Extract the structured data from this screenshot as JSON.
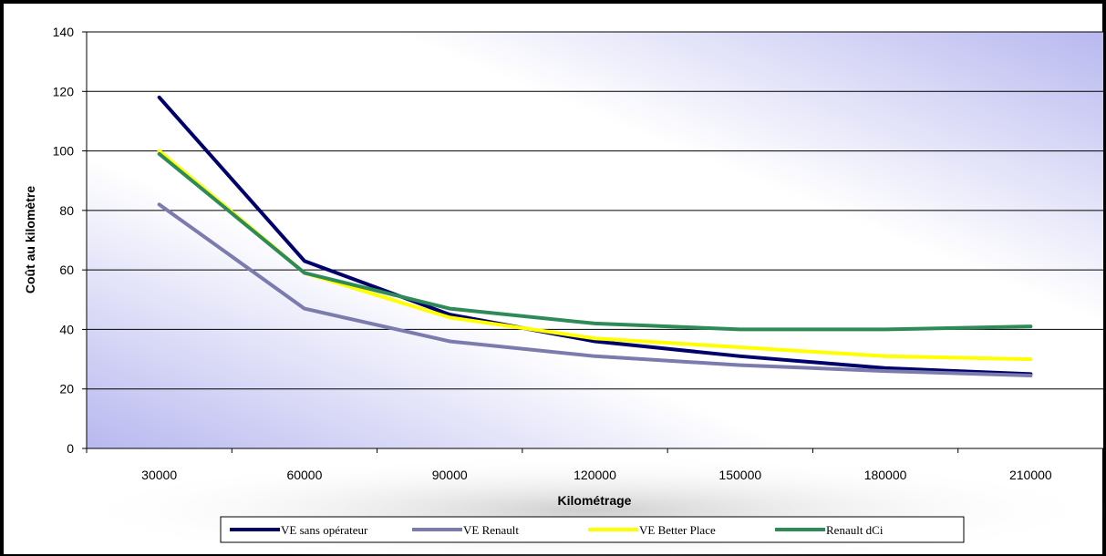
{
  "chart_data": {
    "type": "line",
    "xlabel": "Kilométrage",
    "ylabel": "Coût au kilomètre",
    "categories": [
      "30000",
      "60000",
      "90000",
      "120000",
      "150000",
      "180000",
      "210000"
    ],
    "ylim": [
      0,
      140
    ],
    "yticks": [
      0,
      20,
      40,
      60,
      80,
      100,
      120,
      140
    ],
    "grid": true,
    "legend_position": "bottom",
    "series": [
      {
        "name": "VE sans opérateur",
        "color": "#00006b",
        "values": [
          118,
          63,
          45,
          36,
          31,
          27,
          25
        ]
      },
      {
        "name": "VE Renault",
        "color": "#7b7bad",
        "values": [
          82,
          47,
          36,
          31,
          28,
          26,
          24.5
        ]
      },
      {
        "name": "VE Better Place",
        "color": "#ffff00",
        "values": [
          100,
          59,
          44,
          37,
          34,
          31,
          30
        ]
      },
      {
        "name": "Renault dCi",
        "color": "#2e8b57",
        "values": [
          99,
          59,
          47,
          42,
          40,
          40,
          41
        ]
      }
    ]
  }
}
